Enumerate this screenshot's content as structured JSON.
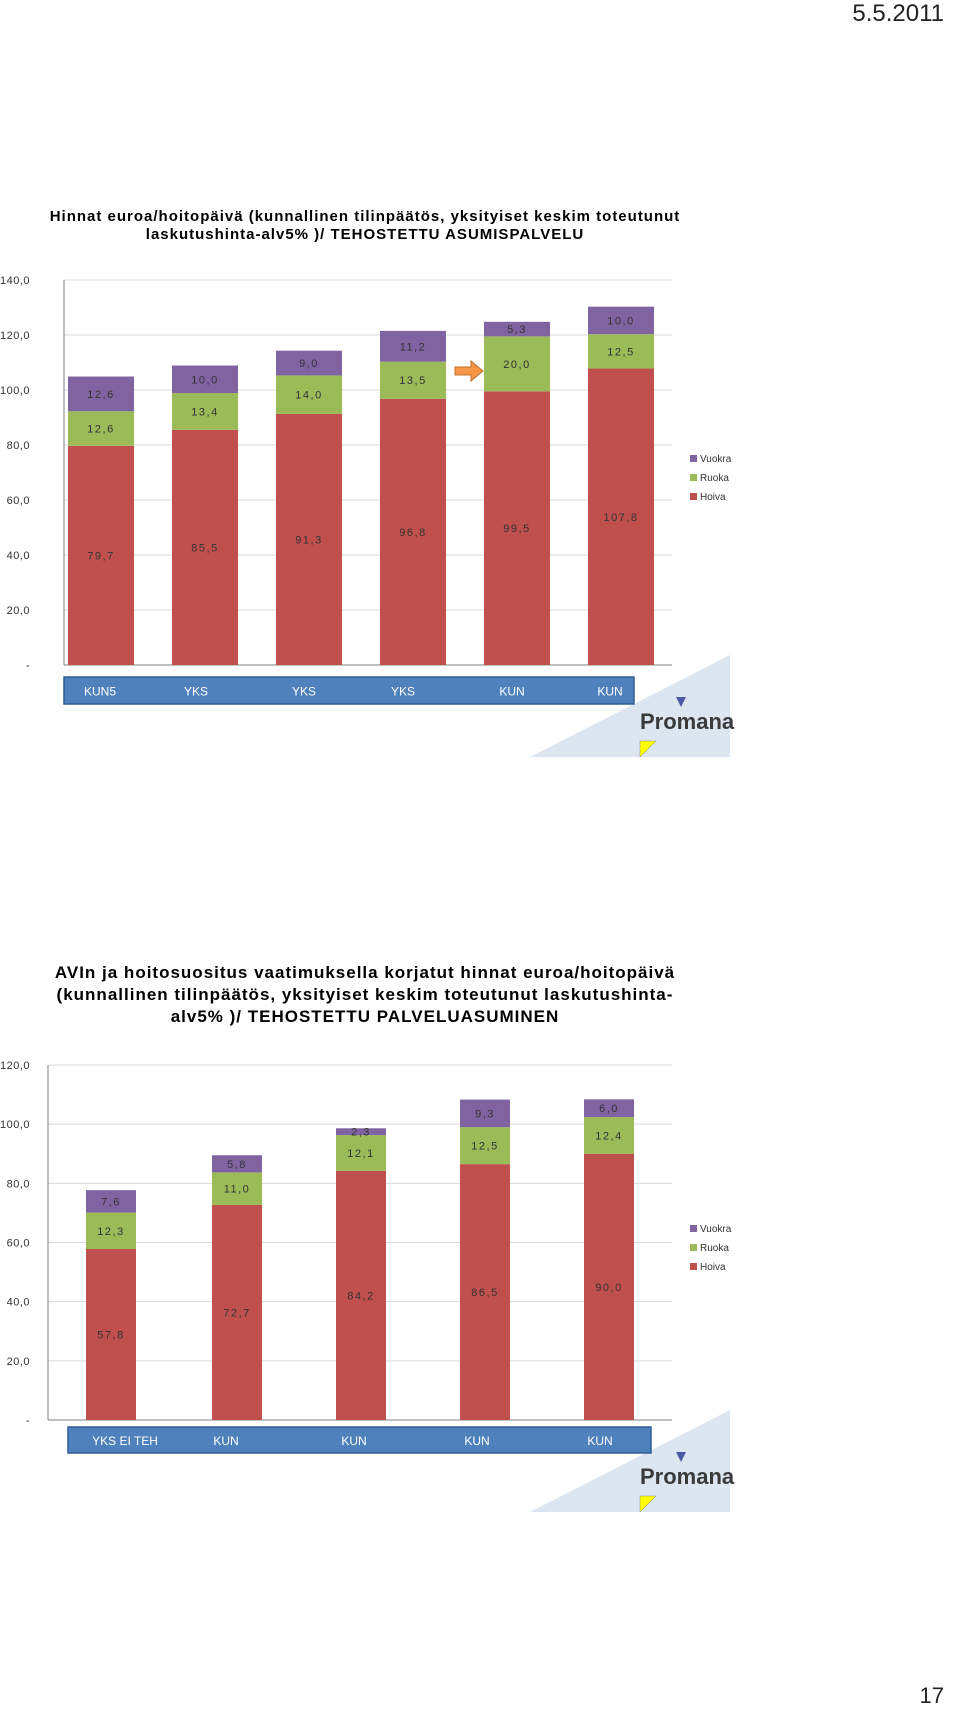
{
  "page": {
    "date": "5.5.2011",
    "page_number": "17"
  },
  "logo": {
    "text": "Promana"
  },
  "chart_data": [
    {
      "type": "bar",
      "stacked": true,
      "title": "Hinnat euroa/hoitopäivä (kunnallinen tilinpäätös, yksityiset keskim toteutunut laskutushinta-alv5% )/ TEHOSTETTU ASUMISPALVELU",
      "categories": [
        "KUN5",
        "YKS",
        "YKS",
        "YKS",
        "KUN",
        "KUN"
      ],
      "series": [
        {
          "name": "Hoiva",
          "color": "#c0504d",
          "values": [
            79.7,
            85.5,
            91.3,
            96.8,
            99.5,
            107.8
          ],
          "labels": [
            "79,7",
            "85,5",
            "91,3",
            "96,8",
            "99,5",
            "107,8"
          ]
        },
        {
          "name": "Ruoka",
          "color": "#9bbb59",
          "values": [
            12.6,
            13.4,
            14.0,
            13.5,
            20.0,
            12.5
          ],
          "labels": [
            "12,6",
            "13,4",
            "14,0",
            "13,5",
            "20,0",
            "12,5"
          ]
        },
        {
          "name": "Vuokra",
          "color": "#8064a2",
          "values": [
            12.6,
            10.0,
            9.0,
            11.2,
            5.3,
            10.0
          ],
          "labels": [
            "12,6",
            "10,0",
            "9,0",
            "11,2",
            "5,3",
            "10,0"
          ]
        }
      ],
      "ylim": [
        0,
        140
      ],
      "yticks": [
        0,
        20,
        40,
        60,
        80,
        100,
        120,
        140
      ],
      "ytick_labels": [
        "-",
        "20,0",
        "40,0",
        "60,0",
        "80,0",
        "100,0",
        "120,0",
        "140,0"
      ],
      "legend": [
        "Vuokra",
        "Ruoka",
        "Hoiva"
      ],
      "legend_position": "right",
      "grid": true,
      "annotations": [
        "arrow pointing right next to 5th bar"
      ]
    },
    {
      "type": "bar",
      "stacked": true,
      "title": "AVIn ja hoitosuositus vaatimuksella korjatut hinnat euroa/hoitopäivä (kunnallinen tilinpäätös, yksityiset keskim toteutunut laskutushinta-alv5% )/ TEHOSTETTU PALVELUASUMINEN",
      "categories": [
        "YKS EI TEH",
        "KUN",
        "KUN",
        "KUN",
        "KUN"
      ],
      "series": [
        {
          "name": "Hoiva",
          "color": "#c0504d",
          "values": [
            57.8,
            72.7,
            84.2,
            86.5,
            90.0
          ],
          "labels": [
            "57,8",
            "72,7",
            "84,2",
            "86,5",
            "90,0"
          ]
        },
        {
          "name": "Ruoka",
          "color": "#9bbb59",
          "values": [
            12.3,
            11.0,
            12.1,
            12.5,
            12.4
          ],
          "labels": [
            "12,3",
            "11,0",
            "12,1",
            "12,5",
            "12,4"
          ]
        },
        {
          "name": "Vuokra",
          "color": "#8064a2",
          "values": [
            7.6,
            5.8,
            2.3,
            9.3,
            6.0
          ],
          "labels": [
            "7,6",
            "5,8",
            "2,3",
            "9,3",
            "6,0"
          ]
        }
      ],
      "ylim": [
        0,
        120
      ],
      "yticks": [
        0,
        20,
        40,
        60,
        80,
        100,
        120
      ],
      "ytick_labels": [
        "-",
        "20,0",
        "40,0",
        "60,0",
        "80,0",
        "100,0",
        "120,0"
      ],
      "legend": [
        "Vuokra",
        "Ruoka",
        "Hoiva"
      ],
      "legend_position": "right",
      "grid": true
    }
  ]
}
